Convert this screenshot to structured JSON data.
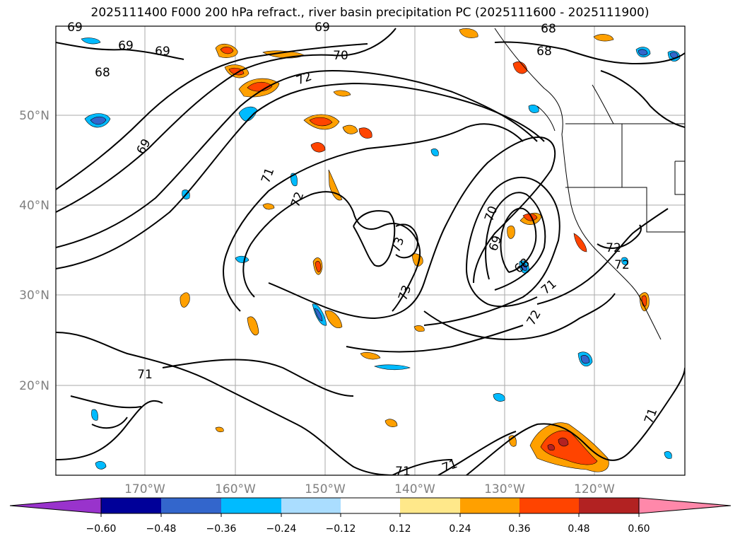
{
  "title": "2025111400 F000 200 hPa refract., river basin precipitation PC (2025111600 - 2025111900)",
  "map": {
    "lat_labels": [
      "50°N",
      "40°N",
      "30°N",
      "20°N"
    ],
    "lon_labels": [
      "170°W",
      "160°W",
      "150°W",
      "140°W",
      "130°W",
      "120°W"
    ],
    "label_color": "#808080",
    "gridlines": true,
    "contour_labels": [
      "69",
      "69",
      "69",
      "68",
      "70",
      "72",
      "69",
      "72",
      "71",
      "72",
      "73",
      "73",
      "70",
      "69",
      "68",
      "71",
      "72",
      "72",
      "71",
      "71",
      "68",
      "68",
      "69",
      "71",
      "71"
    ]
  },
  "colorbar": {
    "ticks": [
      "−0.60",
      "−0.48",
      "−0.36",
      "−0.24",
      "−0.12",
      "0.12",
      "0.24",
      "0.36",
      "0.48",
      "0.60"
    ],
    "colors": [
      "#9933cc",
      "#000099",
      "#3366cc",
      "#00bbff",
      "#aaddff",
      "#ffffff",
      "#ffe88a",
      "#ffa000",
      "#ff4400",
      "#b22222",
      "#ff88aa"
    ]
  }
}
